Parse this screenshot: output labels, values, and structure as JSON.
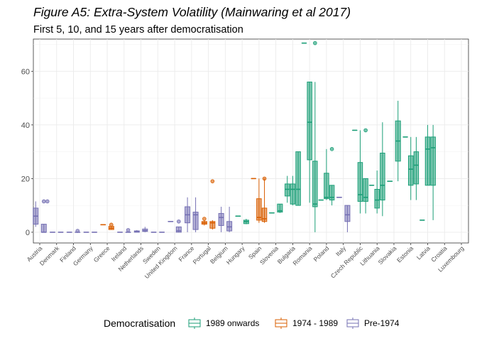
{
  "chart_data": {
    "type": "boxplot",
    "title": "Figure A5: Extra-System Volatility (Mainwaring et al 2017)",
    "subtitle": "First 5, 10, and 15 years after democratisation",
    "ylim": [
      -4,
      72
    ],
    "yticks": [
      0,
      20,
      40,
      60
    ],
    "grid": true,
    "legend": {
      "title": "Democratisation",
      "position": "bottom",
      "entries": [
        {
          "name": "1989 onwards",
          "color": "#1b9e77"
        },
        {
          "name": "1974 - 1989",
          "color": "#d95f02"
        },
        {
          "name": "Pre-1974",
          "color": "#7570b3"
        }
      ]
    },
    "categories": [
      "Austria",
      "Denmark",
      "Finland",
      "Germany",
      "Greece",
      "Ireland",
      "Netherlands",
      "Sweden",
      "United Kingdom",
      "France",
      "Portugal",
      "Belgium",
      "Hungary",
      "Spain",
      "Slovenia",
      "Bulgaria",
      "Romania",
      "Poland",
      "Italy",
      "Czech Republic",
      "Lithuania",
      "Slovakia",
      "Estonia",
      "Latvia",
      "Croatia",
      "Luxembourg"
    ],
    "series": [
      {
        "country": "Austria",
        "group": "Pre-1974",
        "boxes": [
          {
            "min": 2,
            "q1": 3,
            "median": 6,
            "q3": 9,
            "max": 11.5,
            "outliers": []
          },
          {
            "min": 0,
            "q1": 0,
            "median": 0,
            "q3": 3,
            "max": 3,
            "outliers": [
              11.5,
              11.5
            ]
          }
        ]
      },
      {
        "country": "Denmark",
        "group": "Pre-1974",
        "boxes": [
          {
            "min": 0,
            "q1": 0,
            "median": 0,
            "q3": 0,
            "max": 0,
            "outliers": []
          },
          {
            "min": 0,
            "q1": 0,
            "median": 0,
            "q3": 0,
            "max": 0,
            "outliers": []
          }
        ]
      },
      {
        "country": "Finland",
        "group": "Pre-1974",
        "boxes": [
          {
            "min": 0,
            "q1": 0,
            "median": 0,
            "q3": 0,
            "max": 0,
            "outliers": []
          },
          {
            "min": 0,
            "q1": 0,
            "median": 0,
            "q3": 0,
            "max": 0,
            "outliers": [
              0.5
            ]
          }
        ]
      },
      {
        "country": "Germany",
        "group": "Pre-1974",
        "boxes": [
          {
            "min": 0,
            "q1": 0,
            "median": 0,
            "q3": 0,
            "max": 0,
            "outliers": []
          },
          {
            "min": 0,
            "q1": 0,
            "median": 0,
            "q3": 0,
            "max": 0,
            "outliers": []
          }
        ]
      },
      {
        "country": "Greece",
        "group": "1974 - 1989",
        "boxes": [
          {
            "min": 2.8,
            "q1": 2.8,
            "median": 2.8,
            "q3": 2.8,
            "max": 2.8,
            "outliers": []
          },
          {
            "min": 1,
            "q1": 1,
            "median": 1.5,
            "q3": 2.2,
            "max": 2.2,
            "outliers": [
              2.8
            ]
          }
        ]
      },
      {
        "country": "Ireland",
        "group": "Pre-1974",
        "boxes": [
          {
            "min": 0,
            "q1": 0,
            "median": 0,
            "q3": 0,
            "max": 0,
            "outliers": []
          },
          {
            "min": 0,
            "q1": 0,
            "median": 0,
            "q3": 0,
            "max": 0,
            "outliers": [
              0.8
            ]
          }
        ]
      },
      {
        "country": "Netherlands",
        "group": "Pre-1974",
        "boxes": [
          {
            "min": 0,
            "q1": 0,
            "median": 0.3,
            "q3": 0.5,
            "max": 0.8,
            "outliers": []
          },
          {
            "min": 0,
            "q1": 0.3,
            "median": 0.6,
            "q3": 1.2,
            "max": 2,
            "outliers": []
          }
        ]
      },
      {
        "country": "Sweden",
        "group": "Pre-1974",
        "boxes": [
          {
            "min": 0,
            "q1": 0,
            "median": 0,
            "q3": 0,
            "max": 0,
            "outliers": []
          },
          {
            "min": 0,
            "q1": 0,
            "median": 0,
            "q3": 0,
            "max": 0,
            "outliers": []
          }
        ]
      },
      {
        "country": "United Kingdom",
        "group": "Pre-1974",
        "boxes": [
          {
            "min": 4,
            "q1": 4,
            "median": 4,
            "q3": 4,
            "max": 4,
            "outliers": []
          },
          {
            "min": 0,
            "q1": 0,
            "median": 0.5,
            "q3": 2,
            "max": 2,
            "outliers": [
              4
            ]
          }
        ]
      },
      {
        "country": "France",
        "group": "Pre-1974",
        "boxes": [
          {
            "min": 0,
            "q1": 3.5,
            "median": 6.5,
            "q3": 9.5,
            "max": 13,
            "outliers": []
          },
          {
            "min": 0,
            "q1": 1,
            "median": 6.5,
            "q3": 7.5,
            "max": 13,
            "outliers": []
          }
        ]
      },
      {
        "country": "Portugal",
        "group": "1974 - 1989",
        "boxes": [
          {
            "min": 2.5,
            "q1": 3,
            "median": 3.5,
            "q3": 4,
            "max": 4.5,
            "outliers": [
              5
            ]
          },
          {
            "min": 1,
            "q1": 1.5,
            "median": 3.5,
            "q3": 4,
            "max": 4.5,
            "outliers": [
              19
            ]
          }
        ]
      },
      {
        "country": "Belgium",
        "group": "Pre-1974",
        "boxes": [
          {
            "min": 0,
            "q1": 2.5,
            "median": 5.5,
            "q3": 7,
            "max": 9.5,
            "outliers": []
          },
          {
            "min": 0,
            "q1": 0.5,
            "median": 2,
            "q3": 4,
            "max": 9.5,
            "outliers": []
          }
        ]
      },
      {
        "country": "Hungary",
        "group": "1989 onwards",
        "boxes": [
          {
            "min": 6,
            "q1": 6,
            "median": 6,
            "q3": 6,
            "max": 6,
            "outliers": []
          },
          {
            "min": 3,
            "q1": 3.2,
            "median": 4,
            "q3": 4.5,
            "max": 5,
            "outliers": []
          }
        ]
      },
      {
        "country": "Spain",
        "group": "1974 - 1989",
        "boxes": [
          {
            "min": 20,
            "q1": 20,
            "median": 20,
            "q3": 20,
            "max": 20,
            "outliers": []
          },
          {
            "min": 3.5,
            "q1": 4.5,
            "median": 5.5,
            "q3": 12.5,
            "max": 20,
            "outliers": []
          },
          {
            "min": 3.5,
            "q1": 4,
            "median": 5,
            "q3": 9,
            "max": 20,
            "outliers": [
              20
            ]
          }
        ]
      },
      {
        "country": "Slovenia",
        "group": "1989 onwards",
        "boxes": [
          {
            "min": 7.2,
            "q1": 7.2,
            "median": 7.2,
            "q3": 7.2,
            "max": 7.2,
            "outliers": []
          },
          {
            "min": 7.2,
            "q1": 7.5,
            "median": 8,
            "q3": 10.5,
            "max": 10.5,
            "outliers": []
          }
        ]
      },
      {
        "country": "Bulgaria",
        "group": "1989 onwards",
        "boxes": [
          {
            "min": 11,
            "q1": 13.5,
            "median": 16,
            "q3": 18,
            "max": 21,
            "outliers": []
          },
          {
            "min": 10,
            "q1": 10.5,
            "median": 16,
            "q3": 18,
            "max": 21,
            "outliers": []
          },
          {
            "min": 10,
            "q1": 10,
            "median": 16,
            "q3": 30,
            "max": 30,
            "outliers": []
          }
        ]
      },
      {
        "country": "Romania",
        "group": "1989 onwards",
        "boxes": [
          {
            "min": 70.5,
            "q1": 70.5,
            "median": 70.5,
            "q3": 70.5,
            "max": 70.5,
            "outliers": []
          },
          {
            "min": 11,
            "q1": 27,
            "median": 41,
            "q3": 56,
            "max": 56,
            "outliers": []
          },
          {
            "min": 0,
            "q1": 9.5,
            "median": 10.5,
            "q3": 26.5,
            "max": 56,
            "outliers": [
              70.5
            ]
          }
        ]
      },
      {
        "country": "Poland",
        "group": "1989 onwards",
        "boxes": [
          {
            "min": 12,
            "q1": 12,
            "median": 12,
            "q3": 12,
            "max": 12,
            "outliers": []
          },
          {
            "min": 12,
            "q1": 12.5,
            "median": 13,
            "q3": 22,
            "max": 31,
            "outliers": []
          },
          {
            "min": 10,
            "q1": 12,
            "median": 13,
            "q3": 17.5,
            "max": 17.5,
            "outliers": [
              31
            ]
          }
        ]
      },
      {
        "country": "Italy",
        "group": "Pre-1974",
        "boxes": [
          {
            "min": 13,
            "q1": 13,
            "median": 13,
            "q3": 13,
            "max": 13,
            "outliers": []
          },
          {
            "min": 0,
            "q1": 4,
            "median": 6.5,
            "q3": 10,
            "max": 10,
            "outliers": []
          }
        ]
      },
      {
        "country": "Czech Republic",
        "group": "1989 onwards",
        "boxes": [
          {
            "min": 38,
            "q1": 38,
            "median": 38,
            "q3": 38,
            "max": 38,
            "outliers": []
          },
          {
            "min": 7,
            "q1": 11.5,
            "median": 14,
            "q3": 26,
            "max": 38,
            "outliers": []
          },
          {
            "min": 7,
            "q1": 11.5,
            "median": 13,
            "q3": 20,
            "max": 20,
            "outliers": [
              38
            ]
          }
        ]
      },
      {
        "country": "Lithuania",
        "group": "1989 onwards",
        "boxes": [
          {
            "min": 17.5,
            "q1": 17.5,
            "median": 17.5,
            "q3": 17.5,
            "max": 17.5,
            "outliers": []
          },
          {
            "min": 7,
            "q1": 9,
            "median": 12,
            "q3": 16,
            "max": 23,
            "outliers": []
          },
          {
            "min": 6,
            "q1": 12,
            "median": 17.5,
            "q3": 29.5,
            "max": 41,
            "outliers": []
          }
        ]
      },
      {
        "country": "Slovakia",
        "group": "1989 onwards",
        "boxes": [
          {
            "min": 19,
            "q1": 19,
            "median": 19,
            "q3": 19,
            "max": 19,
            "outliers": []
          },
          {
            "min": 19,
            "q1": 26.5,
            "median": 34,
            "q3": 41.5,
            "max": 49,
            "outliers": []
          }
        ]
      },
      {
        "country": "Estonia",
        "group": "1989 onwards",
        "boxes": [
          {
            "min": 35.5,
            "q1": 35.5,
            "median": 35.5,
            "q3": 35.5,
            "max": 35.5,
            "outliers": []
          },
          {
            "min": 12,
            "q1": 17.5,
            "median": 23.5,
            "q3": 28.5,
            "max": 35.5,
            "outliers": []
          },
          {
            "min": 12,
            "q1": 18,
            "median": 25,
            "q3": 30,
            "max": 35.5,
            "outliers": []
          }
        ]
      },
      {
        "country": "Latvia",
        "group": "1989 onwards",
        "boxes": [
          {
            "min": 4.5,
            "q1": 4.5,
            "median": 4.5,
            "q3": 4.5,
            "max": 4.5,
            "outliers": []
          },
          {
            "min": 17.5,
            "q1": 17.5,
            "median": 31,
            "q3": 35.5,
            "max": 40,
            "outliers": []
          },
          {
            "min": 4.5,
            "q1": 17.5,
            "median": 31.5,
            "q3": 35.5,
            "max": 40,
            "outliers": []
          }
        ]
      },
      {
        "country": "Croatia",
        "group": "1989 onwards",
        "boxes": []
      },
      {
        "country": "Luxembourg",
        "group": "Pre-1974",
        "boxes": []
      }
    ]
  }
}
